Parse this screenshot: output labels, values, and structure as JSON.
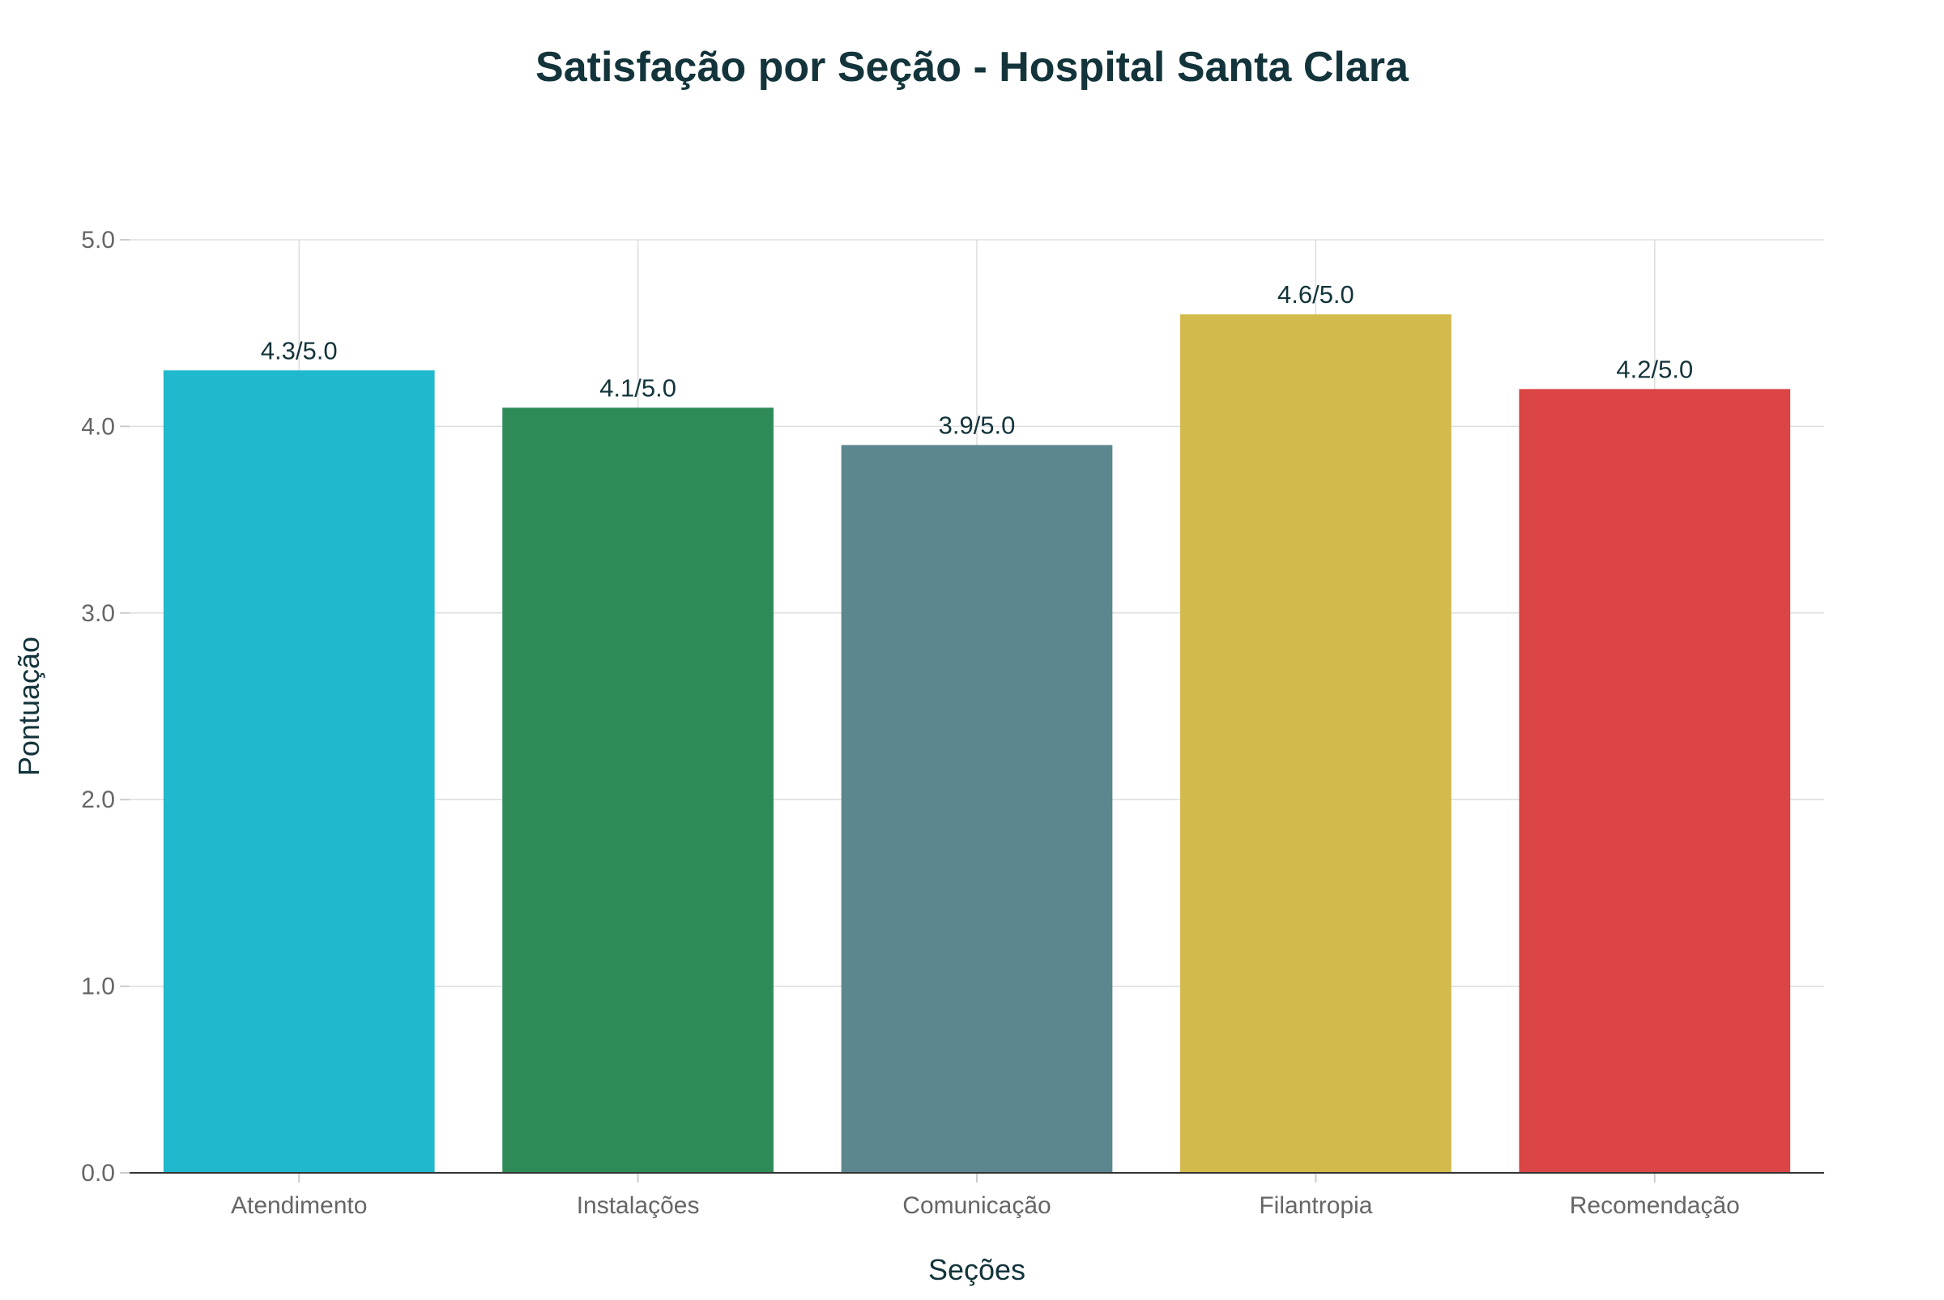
{
  "chart_data": {
    "type": "bar",
    "title": "Satisfação por Seção - Hospital Santa Clara",
    "xlabel": "Seções",
    "ylabel": "Pontuação",
    "categories": [
      "Atendimento",
      "Instalações",
      "Comunicação",
      "Filantropia",
      "Recomendação"
    ],
    "values": [
      4.3,
      4.1,
      3.9,
      4.6,
      4.2
    ],
    "data_labels": [
      "4.3/5.0",
      "4.1/5.0",
      "3.9/5.0",
      "4.6/5.0",
      "4.2/5.0"
    ],
    "colors": [
      "#1FB8CD",
      "#2E8B57",
      "#5D878F",
      "#D2BA4C",
      "#DB4545"
    ],
    "ylim": [
      0,
      5
    ],
    "y_ticks": [
      0,
      1,
      2,
      3,
      4,
      5
    ],
    "y_tick_labels": [
      "0.0",
      "1.0",
      "2.0",
      "3.0",
      "4.0",
      "5.0"
    ],
    "grid": true,
    "legend": "none"
  }
}
